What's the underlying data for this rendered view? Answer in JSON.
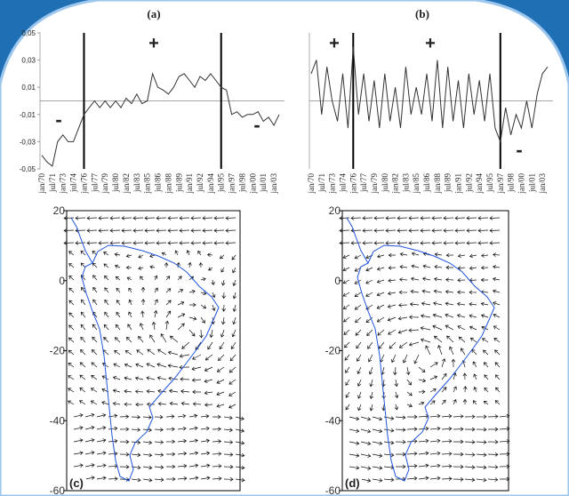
{
  "chart_data": [
    {
      "type": "line",
      "label": "(a)",
      "categories": [
        "jan/70",
        null,
        "jul/71",
        null,
        "jan/73",
        null,
        "jul/74",
        null,
        "jan/76",
        null,
        "jul/77",
        null,
        "jan/79",
        null,
        "jul/80",
        null,
        "jan/82",
        null,
        "jul/83",
        null,
        "jan/85",
        null,
        "jul/86",
        null,
        "jan/88",
        null,
        "jul/89",
        null,
        "jan/91",
        null,
        "jul/92",
        null,
        "jan/94",
        null,
        "jul/95",
        null,
        "jan/97",
        null,
        "jul/98",
        null,
        "jan/00",
        null,
        "jul/01",
        null,
        "jan/03",
        null
      ],
      "series": [
        {
          "color": "#333333",
          "values": [
            -0.04,
            -0.045,
            -0.048,
            -0.03,
            -0.025,
            -0.03,
            -0.03,
            -0.02,
            -0.01,
            -0.005,
            0.0,
            -0.005,
            0.0,
            -0.005,
            0.0,
            -0.005,
            0.002,
            -0.002,
            0.005,
            -0.002,
            0.0,
            0.02,
            0.01,
            0.008,
            0.005,
            0.01,
            0.018,
            0.02,
            0.015,
            0.01,
            0.018,
            0.015,
            0.02,
            0.015,
            0.01,
            0.008,
            -0.01,
            -0.008,
            -0.012,
            -0.01,
            -0.01,
            -0.008,
            -0.015,
            -0.012,
            -0.018,
            -0.01
          ]
        }
      ],
      "ylim": [
        -0.05,
        0.05
      ],
      "yticks": [
        {
          "value": 0.05,
          "label": "0,05"
        },
        {
          "value": 0.03,
          "label": "0,03"
        },
        {
          "value": 0.01,
          "label": "0,01"
        },
        {
          "value": -0.01,
          "label": "-0,01"
        },
        {
          "value": -0.03,
          "label": "-0,03"
        },
        {
          "value": -0.05,
          "label": "-0,05"
        }
      ],
      "annotations": [
        "-",
        "+",
        "-"
      ]
    },
    {
      "type": "line",
      "label": "(b)",
      "categories": [
        "jan/70",
        null,
        "jul/71",
        null,
        "jan/73",
        null,
        "jul/74",
        null,
        "jan/76",
        null,
        "jul/77",
        null,
        "jan/79",
        null,
        "jul/80",
        null,
        "jan/82",
        null,
        "jul/83",
        null,
        "jan/85",
        null,
        "jul/86",
        null,
        "jan/88",
        null,
        "jul/89",
        null,
        "jan/91",
        null,
        "jul/92",
        null,
        "jan/94",
        null,
        "jul/95",
        null,
        "jan/97",
        null,
        "jul/98",
        null,
        "jan/00",
        null,
        "jul/01",
        null,
        "jan/03",
        null
      ],
      "series": [
        {
          "color": "#333333",
          "values": [
            0.02,
            0.03,
            -0.01,
            0.025,
            0.0,
            -0.015,
            0.02,
            -0.02,
            0.04,
            -0.01,
            0.02,
            -0.015,
            0.015,
            -0.02,
            0.02,
            -0.015,
            0.01,
            -0.02,
            0.025,
            -0.01,
            0.01,
            -0.01,
            0.02,
            -0.015,
            0.03,
            -0.02,
            0.025,
            -0.015,
            0.015,
            -0.02,
            0.02,
            -0.01,
            0.015,
            -0.015,
            0.02,
            -0.02,
            -0.03,
            -0.005,
            -0.025,
            -0.01,
            -0.02,
            0.0,
            -0.02,
            0.005,
            0.02,
            0.025
          ]
        }
      ],
      "ylim": [
        -0.05,
        0.05
      ],
      "annotations": [
        "+",
        "+",
        "-"
      ]
    },
    {
      "type": "map",
      "label": "(c)",
      "ylim": [
        -60,
        20
      ],
      "yticks": [
        20,
        0,
        -20,
        -40,
        -60
      ]
    },
    {
      "type": "map",
      "label": "(d)",
      "ylim": [
        -60,
        20
      ],
      "yticks": [
        20,
        0,
        -20,
        -40,
        -60
      ]
    }
  ]
}
